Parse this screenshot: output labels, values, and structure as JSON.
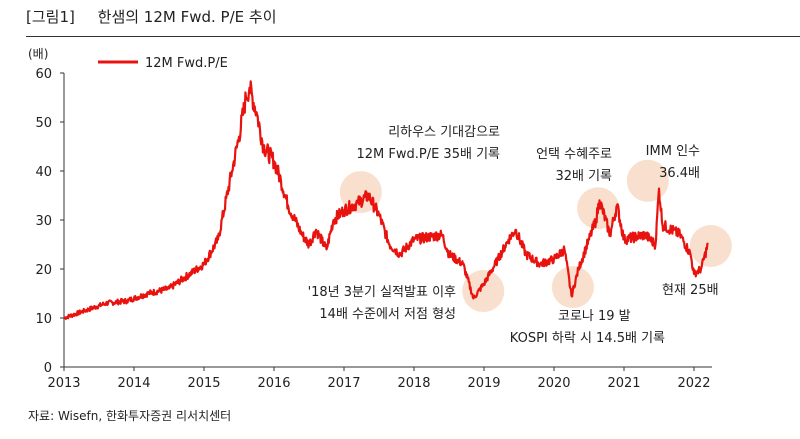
{
  "header": {
    "figure_label": "[그림1]",
    "title": "한샘의 12M Fwd. P/E 추이"
  },
  "source": "자료: Wisefn, 한화투자증권 리서치센터",
  "chart_data": {
    "type": "line",
    "ylabel": "(배)",
    "ylim": [
      0,
      60
    ],
    "yticks": [
      0,
      10,
      20,
      30,
      40,
      50,
      60
    ],
    "xlim": [
      2013,
      2022.3
    ],
    "xticks": [
      "2013",
      "2014",
      "2015",
      "2016",
      "2017",
      "2018",
      "2019",
      "2020",
      "2021",
      "2022"
    ],
    "grid": false,
    "legend": "top-left",
    "colors": {
      "line": "#e8130f",
      "highlight": "#f8d9c4"
    },
    "series": [
      {
        "name": "12M Fwd.P/E",
        "x": [
          2013.0,
          2013.3,
          2013.6,
          2013.9,
          2014.2,
          2014.5,
          2014.8,
          2015.0,
          2015.2,
          2015.4,
          2015.5,
          2015.6,
          2015.65,
          2015.75,
          2015.85,
          2016.0,
          2016.1,
          2016.2,
          2016.4,
          2016.5,
          2016.6,
          2016.75,
          2016.85,
          2017.0,
          2017.2,
          2017.35,
          2017.5,
          2017.65,
          2017.8,
          2018.0,
          2018.2,
          2018.4,
          2018.5,
          2018.7,
          2018.85,
          2019.0,
          2019.2,
          2019.35,
          2019.45,
          2019.6,
          2019.8,
          2020.0,
          2020.15,
          2020.25,
          2020.35,
          2020.5,
          2020.6,
          2020.65,
          2020.8,
          2020.9,
          2021.0,
          2021.3,
          2021.45,
          2021.5,
          2021.55,
          2021.8,
          2021.95,
          2022.0,
          2022.1,
          2022.2
        ],
        "y": [
          10,
          11.5,
          13,
          13.5,
          15,
          16,
          19,
          21,
          26,
          40,
          47,
          55,
          57,
          52,
          45,
          42,
          38,
          33,
          27,
          25,
          28,
          24,
          30,
          32,
          33.5,
          35,
          31,
          25,
          23,
          26,
          26.5,
          27,
          23,
          21,
          14,
          17,
          22,
          26,
          28,
          23,
          21,
          22,
          24,
          14.5,
          20,
          26,
          30,
          34,
          27,
          33,
          26,
          27,
          25,
          36.4,
          29,
          27,
          23,
          19,
          20,
          25
        ]
      }
    ],
    "highlights": [
      {
        "x": 2017.24,
        "y": 35.7
      },
      {
        "x": 2018.99,
        "y": 15.5
      },
      {
        "x": 2020.63,
        "y": 32.4
      },
      {
        "x": 2020.27,
        "y": 16.3
      },
      {
        "x": 2021.34,
        "y": 38
      },
      {
        "x": 2022.24,
        "y": 24.7
      }
    ],
    "annotations": [
      {
        "lines": [
          "리하우스 기대감으로",
          "12M Fwd.P/E 35배 기록"
        ]
      },
      {
        "lines": [
          "'18년 3분기 실적발표 이후",
          "14배 수준에서 저점 형성"
        ]
      },
      {
        "lines": [
          "언택 수혜주로",
          "32배 기록"
        ]
      },
      {
        "lines": [
          "코로나 19 발",
          "KOSPI 하락 시 14.5배 기록"
        ]
      },
      {
        "lines": [
          "IMM 인수",
          "36.4배"
        ]
      },
      {
        "lines": [
          "현재 25배"
        ]
      }
    ]
  }
}
